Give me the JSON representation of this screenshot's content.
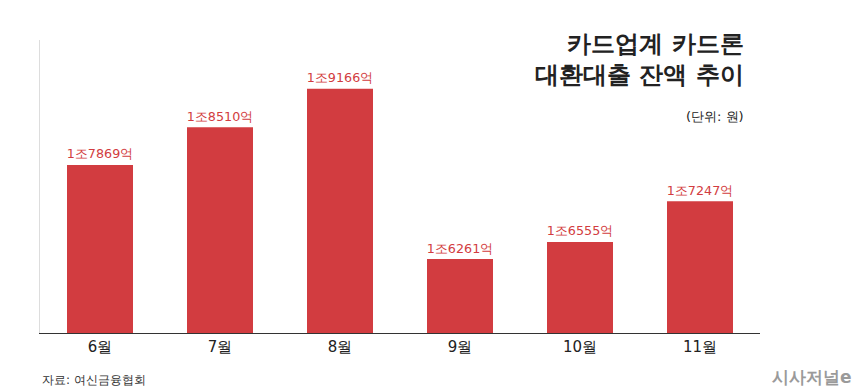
{
  "chart_data": {
    "type": "bar",
    "title": [
      "카드업계 카드론",
      "대환대출 잔액 추이"
    ],
    "subtitle": "(단위: 원)",
    "categories": [
      "6월",
      "7월",
      "8월",
      "9월",
      "10월",
      "11월"
    ],
    "values": [
      1786900000000,
      1851000000000,
      1916600000000,
      1626100000000,
      1655500000000,
      1724700000000
    ],
    "value_labels": [
      "1조7869억",
      "1조8510억",
      "1조9166억",
      "1조6261억",
      "1조6555억",
      "1조7247억"
    ],
    "color": "#d23c40",
    "ylim": [
      1500000000000,
      2000000000000
    ],
    "data_labels": true,
    "tick_labels": "x",
    "grid": false,
    "annotations": [
      "자료: 여신금융협회",
      "시사저널e"
    ]
  }
}
